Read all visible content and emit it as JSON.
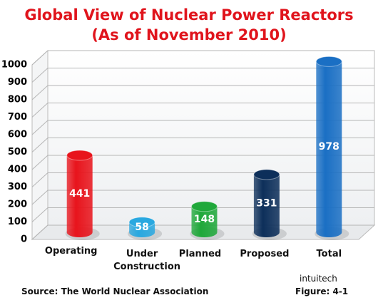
{
  "chart_data": {
    "type": "bar",
    "title": "Global View of Nuclear Power Reactors",
    "subtitle": "(As of November 2010)",
    "categories": [
      "Operating",
      "Under Construction",
      "Planned",
      "Proposed",
      "Total"
    ],
    "values": [
      441,
      58,
      148,
      331,
      978
    ],
    "colors": [
      "#e8141c",
      "#29a8e0",
      "#1fa83a",
      "#0d2f5a",
      "#1a6fc4"
    ],
    "ylim": [
      0,
      1000
    ],
    "yticks": [
      0,
      100,
      200,
      300,
      400,
      500,
      600,
      700,
      800,
      900,
      1000
    ],
    "grid": true,
    "source": "Source:  The World Nuclear Association",
    "credit": "intuitech",
    "figure": "Figure: 4-1"
  }
}
